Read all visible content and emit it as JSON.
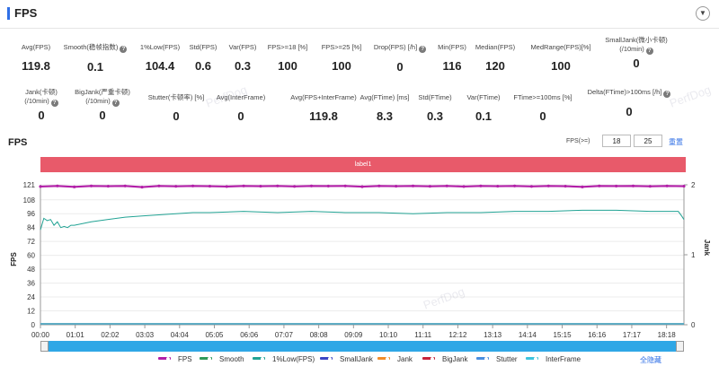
{
  "header": {
    "title": "FPS"
  },
  "metrics_row1": [
    {
      "label": "Avg(FPS)",
      "value": "119.8",
      "help": false
    },
    {
      "label": "Smooth(稳帧指数)",
      "value": "0.1",
      "help": true
    },
    {
      "label": "1%Low(FPS)",
      "value": "104.4",
      "help": false
    },
    {
      "label": "Std(FPS)",
      "value": "0.6",
      "help": false
    },
    {
      "label": "Var(FPS)",
      "value": "0.3",
      "help": false
    },
    {
      "label": "FPS>=18 [%]",
      "value": "100",
      "help": false
    },
    {
      "label": "FPS>=25 [%]",
      "value": "100",
      "help": false
    },
    {
      "label": "Drop(FPS) [/h]",
      "value": "0",
      "help": true
    },
    {
      "label": "Min(FPS)",
      "value": "116",
      "help": false
    },
    {
      "label": "Median(FPS)",
      "value": "120",
      "help": false
    },
    {
      "label": "MedRange(FPS)[%]",
      "value": "100",
      "help": false
    },
    {
      "label": "SmallJank(微小卡顿)",
      "label2": "(/10min)",
      "value": "0",
      "help": true
    }
  ],
  "metrics_row2": [
    {
      "label": "Jank(卡顿)",
      "label2": "(/10min)",
      "value": "0",
      "help": true
    },
    {
      "label": "BigJank(严重卡顿)",
      "label2": "(/10min)",
      "value": "0",
      "help": true
    },
    {
      "label": "Stutter(卡顿率) [%]",
      "value": "0",
      "help": false
    },
    {
      "label": "Avg(InterFrame)",
      "value": "0",
      "help": false
    },
    {
      "label": "Avg(FPS+InterFrame)",
      "value": "119.8",
      "help": false
    },
    {
      "label": "Avg(FTime) [ms]",
      "value": "8.3",
      "help": false
    },
    {
      "label": "Std(FTime)",
      "value": "0.3",
      "help": false
    },
    {
      "label": "Var(FTime)",
      "value": "0.1",
      "help": false
    },
    {
      "label": "FTime>=100ms [%]",
      "value": "0",
      "help": false
    },
    {
      "label": "Delta(FTime)>100ms [/h]",
      "value": "0",
      "help": true
    }
  ],
  "chart_header": {
    "title": "FPS",
    "threshold_label": "FPS(>=)",
    "threshold_1": "18",
    "threshold_2": "25",
    "reset_label": "重置"
  },
  "label_bar": "label1",
  "watermark": "PerfDog",
  "legend_hide_all": "全隐藏",
  "colors": {
    "fps": "#b21fa8",
    "smooth": "#2f9a59",
    "low1": "#22a394",
    "smalljank": "#3b46c4",
    "jank": "#f28c2a",
    "bigjank": "#c8243a",
    "stutter": "#4a8fe0",
    "interframe": "#3ec4de"
  },
  "chart_data": {
    "type": "line",
    "x_tick_labels": [
      "00:00",
      "01:01",
      "02:02",
      "03:03",
      "04:04",
      "05:05",
      "06:06",
      "07:07",
      "08:08",
      "09:09",
      "10:10",
      "11:11",
      "12:12",
      "13:13",
      "14:14",
      "15:15",
      "16:16",
      "17:17",
      "18:18"
    ],
    "x_unit": "seconds",
    "x_range": [
      0,
      1140
    ],
    "y_left": {
      "label": "FPS",
      "ticks": [
        0,
        12,
        24,
        36,
        48,
        60,
        72,
        84,
        96,
        108,
        121
      ],
      "range": [
        0,
        121
      ]
    },
    "y_right": {
      "label": "Jank",
      "ticks": [
        0,
        1,
        2
      ],
      "range": [
        0,
        2
      ]
    },
    "series": [
      {
        "name": "FPS",
        "axis": "left",
        "type": "line-markers",
        "x": [
          0,
          30,
          60,
          90,
          120,
          150,
          180,
          210,
          240,
          270,
          300,
          330,
          360,
          390,
          420,
          450,
          480,
          510,
          540,
          570,
          600,
          630,
          660,
          690,
          720,
          750,
          780,
          810,
          840,
          870,
          900,
          930,
          960,
          990,
          1020,
          1050,
          1080,
          1110,
          1140
        ],
        "values": [
          119.5,
          120,
          119.2,
          120,
          119.8,
          120,
          119,
          120,
          119.7,
          120,
          119.8,
          119.5,
          120,
          119.8,
          120,
          119.6,
          120,
          119.9,
          120,
          119.4,
          120,
          119.8,
          120,
          119.7,
          120,
          119.5,
          120,
          119.8,
          120,
          119.6,
          120,
          119.8,
          119.2,
          120,
          119.9,
          120,
          119.7,
          120,
          119.8
        ]
      },
      {
        "name": "Smooth",
        "axis": "left",
        "values_note": "flat",
        "x": [
          0,
          1140
        ],
        "values": [
          0,
          0
        ]
      },
      {
        "name": "1%Low(FPS)",
        "axis": "left",
        "x": [
          0,
          6,
          12,
          18,
          24,
          30,
          36,
          42,
          48,
          54,
          60,
          90,
          120,
          150,
          180,
          210,
          240,
          270,
          300,
          360,
          420,
          480,
          540,
          600,
          660,
          720,
          780,
          840,
          900,
          960,
          1020,
          1080,
          1130,
          1136,
          1140
        ],
        "values": [
          82,
          92,
          90,
          91,
          86,
          89,
          84,
          85,
          84,
          86,
          86,
          89,
          91,
          93,
          94,
          95,
          96,
          97,
          97,
          98,
          97,
          98,
          97,
          97,
          96,
          97,
          97,
          98,
          98,
          99,
          99,
          98,
          98,
          94,
          91
        ]
      },
      {
        "name": "SmallJank",
        "axis": "right",
        "x": [
          0,
          1140
        ],
        "values": [
          0,
          0
        ]
      },
      {
        "name": "Jank",
        "axis": "right",
        "x": [
          0,
          1140
        ],
        "values": [
          0,
          0
        ]
      },
      {
        "name": "BigJank",
        "axis": "right",
        "x": [
          0,
          1140
        ],
        "values": [
          0,
          0
        ]
      },
      {
        "name": "Stutter",
        "axis": "right",
        "x": [
          0,
          1140
        ],
        "values": [
          0,
          0
        ]
      },
      {
        "name": "InterFrame",
        "axis": "left",
        "x": [
          0,
          1140
        ],
        "values": [
          0,
          0
        ]
      }
    ],
    "grid": true,
    "legend_position": "bottom"
  }
}
